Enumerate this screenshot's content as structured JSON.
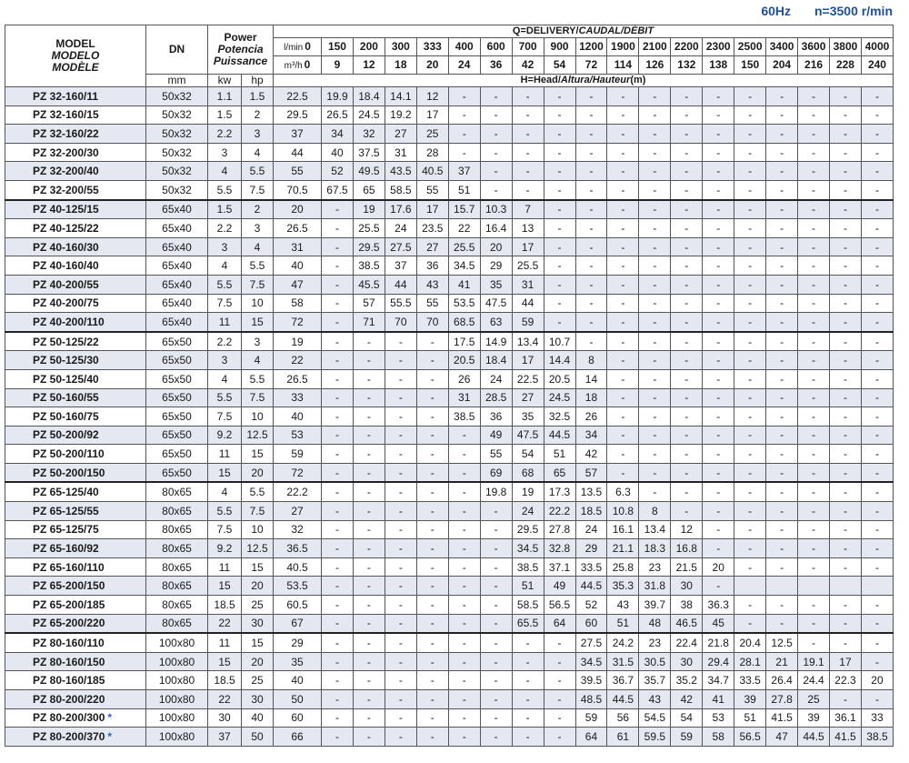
{
  "header": {
    "frequency": "60Hz",
    "speed": "n=3500 r/min"
  },
  "table": {
    "model_head": [
      "MODEL",
      "MODELO",
      "MODÈLE"
    ],
    "dn_head": "DN",
    "dn_unit": "mm",
    "power_head": [
      "Power",
      "Potencia",
      "Puissance"
    ],
    "power_units": [
      "kw",
      "hp"
    ],
    "q_head": [
      "Q=DELIVERY/",
      "CAUDAL/DÉBIT"
    ],
    "flow_lmin_unit": "l/min",
    "flow_lmin": [
      0,
      150,
      200,
      300,
      333,
      400,
      600,
      700,
      900,
      1200,
      1900,
      2100,
      2200,
      2300,
      2500,
      3400,
      3600,
      3800,
      4000
    ],
    "flow_m3h_unit": "m³/h",
    "flow_m3h": [
      0,
      9,
      12,
      18,
      20,
      24,
      36,
      42,
      54,
      72,
      114,
      126,
      132,
      138,
      150,
      204,
      216,
      228,
      240
    ],
    "head_label": [
      "H=Head/",
      "Altura/Hauteur",
      "(m)"
    ],
    "rows": [
      {
        "model": "PZ 32-160/11",
        "dn": "50x32",
        "kw": 1.1,
        "hp": 1.5,
        "head": [
          22.5,
          19.9,
          18.4,
          14.1,
          12,
          "-",
          "-",
          "-",
          "-",
          "-",
          "-",
          "-",
          "-",
          "-",
          "-",
          "-",
          "-",
          "-",
          "-"
        ]
      },
      {
        "model": "PZ 32-160/15",
        "dn": "50x32",
        "kw": 1.5,
        "hp": 2,
        "head": [
          29.5,
          26.5,
          24.5,
          19.2,
          17,
          "-",
          "-",
          "-",
          "-",
          "-",
          "-",
          "-",
          "-",
          "-",
          "-",
          "-",
          "-",
          "-",
          "-"
        ]
      },
      {
        "model": "PZ 32-160/22",
        "dn": "50x32",
        "kw": 2.2,
        "hp": 3,
        "head": [
          37,
          34,
          32,
          27,
          25,
          "-",
          "-",
          "-",
          "-",
          "-",
          "-",
          "-",
          "-",
          "-",
          "-",
          "-",
          "-",
          "-",
          "-"
        ]
      },
      {
        "model": "PZ 32-200/30",
        "dn": "50x32",
        "kw": 3,
        "hp": 4,
        "head": [
          44,
          40,
          37.5,
          31,
          28,
          "-",
          "-",
          "-",
          "-",
          "-",
          "-",
          "-",
          "-",
          "-",
          "-",
          "-",
          "-",
          "-",
          "-"
        ]
      },
      {
        "model": "PZ 32-200/40",
        "dn": "50x32",
        "kw": 4,
        "hp": 5.5,
        "head": [
          55,
          52,
          49.5,
          43.5,
          40.5,
          37,
          "-",
          "-",
          "-",
          "-",
          "-",
          "-",
          "-",
          "-",
          "-",
          "-",
          "-",
          "-",
          "-"
        ]
      },
      {
        "model": "PZ 32-200/55",
        "dn": "50x32",
        "kw": 5.5,
        "hp": 7.5,
        "head": [
          70.5,
          67.5,
          65,
          58.5,
          55,
          51,
          "-",
          "-",
          "-",
          "-",
          "-",
          "-",
          "-",
          "-",
          "-",
          "-",
          "-",
          "-",
          "-"
        ]
      },
      {
        "model": "PZ 40-125/15",
        "dn": "65x40",
        "kw": 1.5,
        "hp": 2,
        "head": [
          20,
          "-",
          19,
          17.6,
          17,
          15.7,
          10.3,
          7,
          "-",
          "-",
          "-",
          "-",
          "-",
          "-",
          "-",
          "-",
          "-",
          "-",
          "-"
        ]
      },
      {
        "model": "PZ 40-125/22",
        "dn": "65x40",
        "kw": 2.2,
        "hp": 3,
        "head": [
          26.5,
          "-",
          25.5,
          24,
          23.5,
          22,
          16.4,
          13,
          "-",
          "-",
          "-",
          "-",
          "-",
          "-",
          "-",
          "-",
          "-",
          "-",
          "-"
        ]
      },
      {
        "model": "PZ 40-160/30",
        "dn": "65x40",
        "kw": 3,
        "hp": 4,
        "head": [
          31,
          "-",
          29.5,
          27.5,
          27,
          25.5,
          20,
          17,
          "-",
          "-",
          "-",
          "-",
          "-",
          "-",
          "-",
          "-",
          "-",
          "-",
          "-"
        ]
      },
      {
        "model": "PZ 40-160/40",
        "dn": "65x40",
        "kw": 4,
        "hp": 5.5,
        "head": [
          40,
          "-",
          38.5,
          37,
          36,
          34.5,
          29,
          25.5,
          "-",
          "-",
          "-",
          "-",
          "-",
          "-",
          "-",
          "-",
          "-",
          "-",
          "-"
        ]
      },
      {
        "model": "PZ 40-200/55",
        "dn": "65x40",
        "kw": 5.5,
        "hp": 7.5,
        "head": [
          47,
          "-",
          45.5,
          44,
          43,
          41,
          35,
          31,
          "-",
          "-",
          "-",
          "-",
          "-",
          "-",
          "-",
          "-",
          "-",
          "-",
          "-"
        ]
      },
      {
        "model": "PZ 40-200/75",
        "dn": "65x40",
        "kw": 7.5,
        "hp": 10,
        "head": [
          58,
          "-",
          57,
          55.5,
          55,
          53.5,
          47.5,
          44,
          "-",
          "-",
          "-",
          "-",
          "-",
          "-",
          "-",
          "-",
          "-",
          "-",
          "-"
        ]
      },
      {
        "model": "PZ 40-200/110",
        "dn": "65x40",
        "kw": 11,
        "hp": 15,
        "head": [
          72,
          "-",
          71,
          70,
          70,
          68.5,
          63,
          59,
          "-",
          "-",
          "-",
          "-",
          "-",
          "-",
          "-",
          "-",
          "-",
          "-",
          "-"
        ]
      },
      {
        "model": "PZ 50-125/22",
        "dn": "65x50",
        "kw": 2.2,
        "hp": 3,
        "head": [
          19,
          "-",
          "-",
          "-",
          "-",
          17.5,
          14.9,
          13.4,
          10.7,
          "-",
          "-",
          "-",
          "-",
          "-",
          "-",
          "-",
          "-",
          "-",
          "-"
        ]
      },
      {
        "model": "PZ 50-125/30",
        "dn": "65x50",
        "kw": 3,
        "hp": 4,
        "head": [
          22,
          "-",
          "-",
          "-",
          "-",
          20.5,
          18.4,
          17,
          14.4,
          8,
          "-",
          "-",
          "-",
          "-",
          "-",
          "-",
          "-",
          "-",
          "-"
        ]
      },
      {
        "model": "PZ 50-125/40",
        "dn": "65x50",
        "kw": 4,
        "hp": 5.5,
        "head": [
          26.5,
          "-",
          "-",
          "-",
          "-",
          26,
          24,
          22.5,
          20.5,
          14,
          "-",
          "-",
          "-",
          "-",
          "-",
          "-",
          "-",
          "-",
          "-"
        ]
      },
      {
        "model": "PZ 50-160/55",
        "dn": "65x50",
        "kw": 5.5,
        "hp": 7.5,
        "head": [
          33,
          "-",
          "-",
          "-",
          "-",
          31,
          28.5,
          27,
          24.5,
          18,
          "-",
          "-",
          "-",
          "-",
          "-",
          "-",
          "-",
          "-",
          "-"
        ]
      },
      {
        "model": "PZ 50-160/75",
        "dn": "65x50",
        "kw": 7.5,
        "hp": 10,
        "head": [
          40,
          "-",
          "-",
          "-",
          "-",
          38.5,
          36,
          35,
          32.5,
          26,
          "-",
          "-",
          "-",
          "-",
          "-",
          "-",
          "-",
          "-",
          "-"
        ]
      },
      {
        "model": "PZ 50-200/92",
        "dn": "65x50",
        "kw": 9.2,
        "hp": 12.5,
        "head": [
          53,
          "-",
          "-",
          "-",
          "-",
          "-",
          49,
          47.5,
          44.5,
          34,
          "-",
          "-",
          "-",
          "-",
          "-",
          "-",
          "-",
          "-",
          "-"
        ]
      },
      {
        "model": "PZ 50-200/110",
        "dn": "65x50",
        "kw": 11,
        "hp": 15,
        "head": [
          59,
          "-",
          "-",
          "-",
          "-",
          "-",
          55,
          54,
          51,
          42,
          "-",
          "-",
          "-",
          "-",
          "-",
          "-",
          "-",
          "-",
          "-"
        ]
      },
      {
        "model": "PZ 50-200/150",
        "dn": "65x50",
        "kw": 15,
        "hp": 20,
        "head": [
          72,
          "-",
          "-",
          "-",
          "-",
          "-",
          69,
          68,
          65,
          57,
          "-",
          "-",
          "-",
          "-",
          "-",
          "-",
          "-",
          "-",
          "-"
        ]
      },
      {
        "model": "PZ 65-125/40",
        "dn": "80x65",
        "kw": 4,
        "hp": 5.5,
        "head": [
          22.2,
          "-",
          "-",
          "-",
          "-",
          "-",
          19.8,
          19,
          17.3,
          13.5,
          6.3,
          "-",
          "-",
          "-",
          "-",
          "-",
          "-",
          "-",
          "-"
        ]
      },
      {
        "model": "PZ 65-125/55",
        "dn": "80x65",
        "kw": 5.5,
        "hp": 7.5,
        "head": [
          27,
          "-",
          "-",
          "-",
          "-",
          "-",
          "-",
          24,
          22.2,
          18.5,
          10.8,
          8,
          "-",
          "-",
          "-",
          "-",
          "-",
          "-",
          "-"
        ]
      },
      {
        "model": "PZ 65-125/75",
        "dn": "80x65",
        "kw": 7.5,
        "hp": 10,
        "head": [
          32,
          "-",
          "-",
          "-",
          "-",
          "-",
          "-",
          29.5,
          27.8,
          24,
          16.1,
          13.4,
          12,
          "-",
          "-",
          "-",
          "-",
          "-",
          "-"
        ]
      },
      {
        "model": "PZ 65-160/92",
        "dn": "80x65",
        "kw": 9.2,
        "hp": 12.5,
        "head": [
          36.5,
          "-",
          "-",
          "-",
          "-",
          "-",
          "-",
          34.5,
          32.8,
          29,
          21.1,
          18.3,
          16.8,
          "-",
          "-",
          "-",
          "-",
          "-",
          "-"
        ]
      },
      {
        "model": "PZ 65-160/110",
        "dn": "80x65",
        "kw": 11,
        "hp": 15,
        "head": [
          40.5,
          "-",
          "-",
          "-",
          "-",
          "-",
          "-",
          38.5,
          37.1,
          33.5,
          25.8,
          23,
          21.5,
          20,
          "-",
          "-",
          "-",
          "-",
          "-"
        ]
      },
      {
        "model": "PZ 65-200/150",
        "dn": "80x65",
        "kw": 15,
        "hp": 20,
        "head": [
          53.5,
          "-",
          "-",
          "-",
          "-",
          "-",
          "-",
          51,
          49,
          44.5,
          35.3,
          31.8,
          30,
          "-",
          null,
          null,
          null,
          null,
          null
        ]
      },
      {
        "model": "PZ 65-200/185",
        "dn": "80x65",
        "kw": 18.5,
        "hp": 25,
        "head": [
          60.5,
          "-",
          "-",
          "-",
          "-",
          "-",
          "-",
          58.5,
          56.5,
          52,
          43,
          39.7,
          38,
          36.3,
          "-",
          "-",
          "-",
          "-",
          "-"
        ]
      },
      {
        "model": "PZ 65-200/220",
        "dn": "80x65",
        "kw": 22,
        "hp": 30,
        "head": [
          67,
          "-",
          "-",
          "-",
          "-",
          "-",
          "-",
          65.5,
          64,
          60,
          51,
          48,
          46.5,
          45,
          "-",
          "-",
          "-",
          "-",
          "-"
        ]
      },
      {
        "model": "PZ 80-160/110",
        "dn": "100x80",
        "kw": 11,
        "hp": 15,
        "head": [
          29,
          "-",
          "-",
          "-",
          "-",
          "-",
          "-",
          "-",
          "-",
          27.5,
          24.2,
          23,
          22.4,
          21.8,
          20.4,
          12.5,
          "-",
          "-",
          "-"
        ]
      },
      {
        "model": "PZ 80-160/150",
        "dn": "100x80",
        "kw": 15,
        "hp": 20,
        "head": [
          35,
          "-",
          "-",
          "-",
          "-",
          "-",
          "-",
          "-",
          "-",
          34.5,
          31.5,
          30.5,
          30,
          29.4,
          28.1,
          21,
          19.1,
          17,
          "-"
        ]
      },
      {
        "model": "PZ 80-160/185",
        "dn": "100x80",
        "kw": 18.5,
        "hp": 25,
        "head": [
          40,
          "-",
          "-",
          "-",
          "-",
          "-",
          "-",
          "-",
          "-",
          39.5,
          36.7,
          35.7,
          35.2,
          34.7,
          33.5,
          26.4,
          24.4,
          22.3,
          20
        ]
      },
      {
        "model": "PZ 80-200/220",
        "dn": "100x80",
        "kw": 22,
        "hp": 30,
        "head": [
          50,
          "-",
          "-",
          "-",
          "-",
          "-",
          "-",
          "-",
          "-",
          48.5,
          44.5,
          43,
          42,
          41,
          39,
          27.8,
          25,
          "-",
          "-"
        ]
      },
      {
        "model": "PZ 80-200/300",
        "note": "*",
        "dn": "100x80",
        "kw": 30,
        "hp": 40,
        "head": [
          60,
          "-",
          "-",
          "-",
          "-",
          "-",
          "-",
          "-",
          "-",
          59,
          56,
          54.5,
          54,
          53,
          51,
          41.5,
          39,
          36.1,
          33
        ]
      },
      {
        "model": "PZ 80-200/370",
        "note": "*",
        "dn": "100x80",
        "kw": 37,
        "hp": 50,
        "head": [
          66,
          "-",
          "-",
          "-",
          "-",
          "-",
          "-",
          "-",
          "-",
          64,
          61,
          59.5,
          59,
          58,
          56.5,
          47,
          44.5,
          41.5,
          38.5
        ]
      }
    ]
  }
}
